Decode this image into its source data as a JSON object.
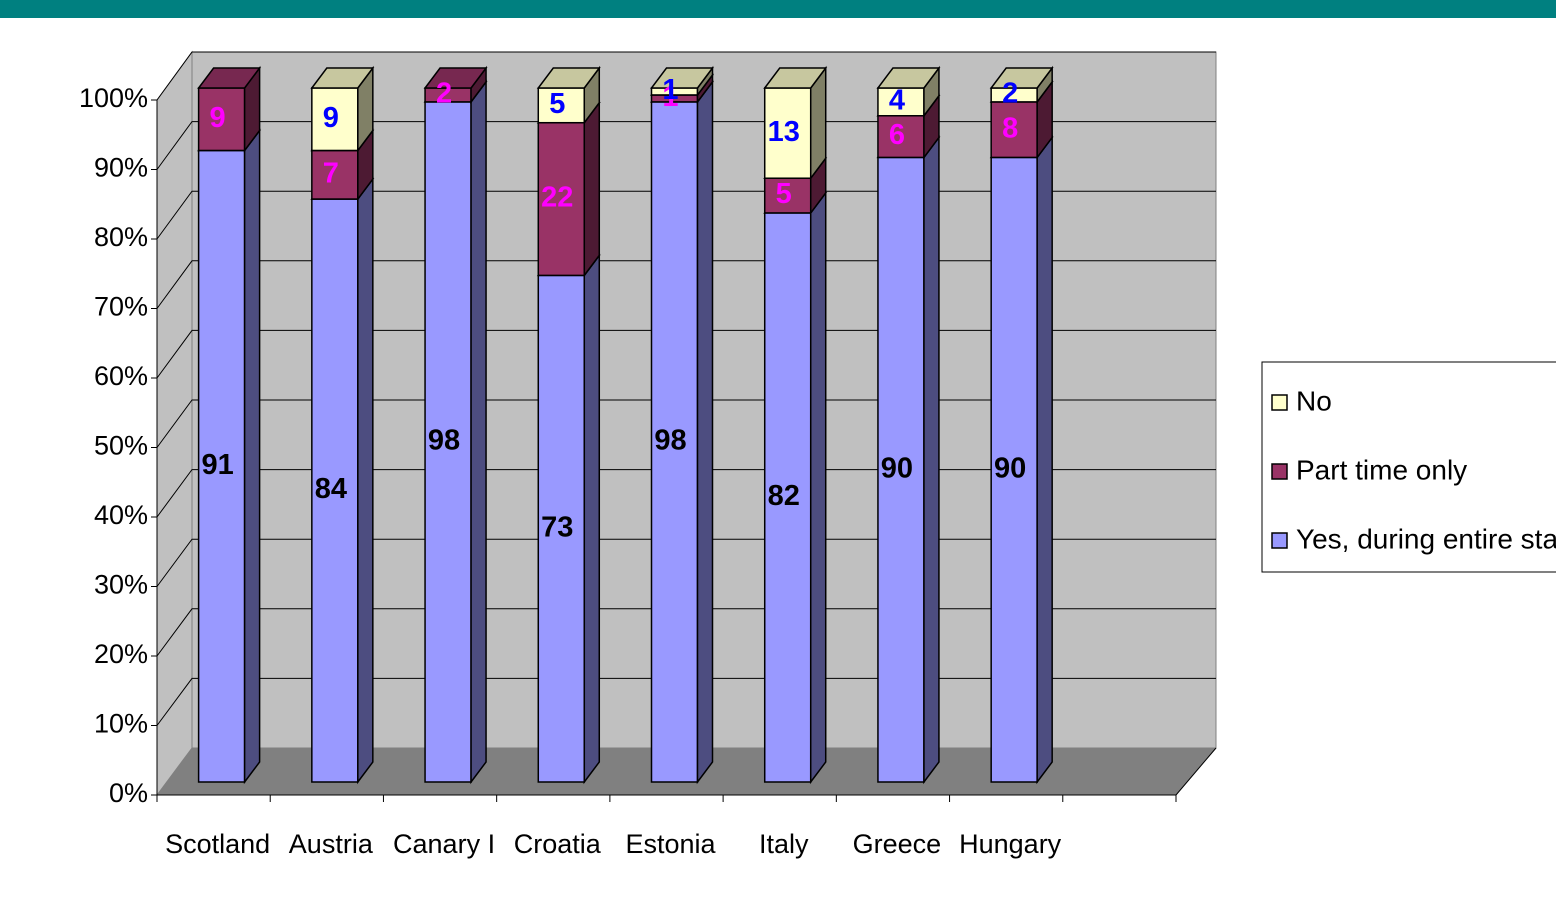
{
  "chart_data": {
    "type": "bar",
    "stacked": true,
    "categories": [
      "Scotland",
      "Austria",
      "Canary I",
      "Croatia",
      "Estonia",
      "Italy",
      "Greece",
      "Hungary"
    ],
    "series": [
      {
        "name": "Yes, during entire stay",
        "color": "#9999ff",
        "label_color": "#000000",
        "values": [
          91,
          84,
          98,
          73,
          98,
          82,
          90,
          90
        ]
      },
      {
        "name": "Part time only",
        "color": "#993366",
        "label_color": "#ff00ff",
        "values": [
          9,
          7,
          2,
          22,
          1,
          5,
          6,
          8
        ]
      },
      {
        "name": "No",
        "color": "#ffffcc",
        "label_color": "#0000ff",
        "values": [
          null,
          9,
          null,
          5,
          1,
          13,
          4,
          2
        ]
      }
    ],
    "ylim": [
      0,
      100
    ],
    "yticks": [
      {
        "value": 0,
        "label": "0%"
      },
      {
        "value": 10,
        "label": "10%"
      },
      {
        "value": 20,
        "label": "20%"
      },
      {
        "value": 30,
        "label": "30%"
      },
      {
        "value": 40,
        "label": "40%"
      },
      {
        "value": 50,
        "label": "50%"
      },
      {
        "value": 60,
        "label": "60%"
      },
      {
        "value": 70,
        "label": "70%"
      },
      {
        "value": 80,
        "label": "80%"
      },
      {
        "value": 90,
        "label": "90%"
      },
      {
        "value": 100,
        "label": "100%"
      }
    ],
    "grid": true,
    "legend": "right"
  }
}
